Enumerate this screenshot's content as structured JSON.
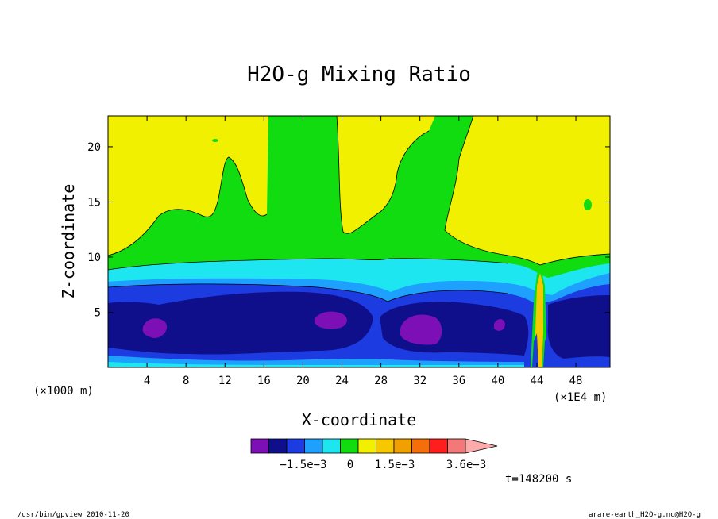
{
  "chart_data": {
    "type": "heatmap",
    "title": "H2O-g Mixing Ratio",
    "xlabel": "X-coordinate",
    "ylabel": "Z-coordinate",
    "x_unit_left": "(×1000 m)",
    "x_unit_right": "(×1E4 m)",
    "xlim": [
      0,
      51.5
    ],
    "ylim": [
      0,
      22.8
    ],
    "x_ticks": [
      4,
      8,
      12,
      16,
      20,
      24,
      28,
      32,
      36,
      40,
      44,
      48
    ],
    "y_ticks": [
      5,
      10,
      15,
      20
    ],
    "colorbar": {
      "labels": [
        "−1.5e−3",
        "0",
        "1.5e−3",
        "3.6e−3"
      ],
      "colors": [
        "#7c0fb5",
        "#0f0f8c",
        "#1c3ce1",
        "#1ea0ff",
        "#1ee6f0",
        "#10dc10",
        "#f0f000",
        "#f5c800",
        "#f0a000",
        "#f56e0a",
        "#ff1e1e",
        "#f57878",
        "#ffaaaa"
      ]
    },
    "time_label": "t=148200 s",
    "fields": {
      "top_yellow": "#f0f000",
      "green": "#10dc10",
      "cyan": "#1ee6f0",
      "lightblue": "#1ea0ff",
      "blue": "#1c3ce1",
      "navy": "#0f0f8c",
      "purple": "#7c0fb5",
      "orange": "#f5c800"
    }
  },
  "footer": {
    "left": "/usr/bin/gpview  2010-11-20",
    "right": "arare-earth_H2O-g.nc@H2O-g"
  }
}
